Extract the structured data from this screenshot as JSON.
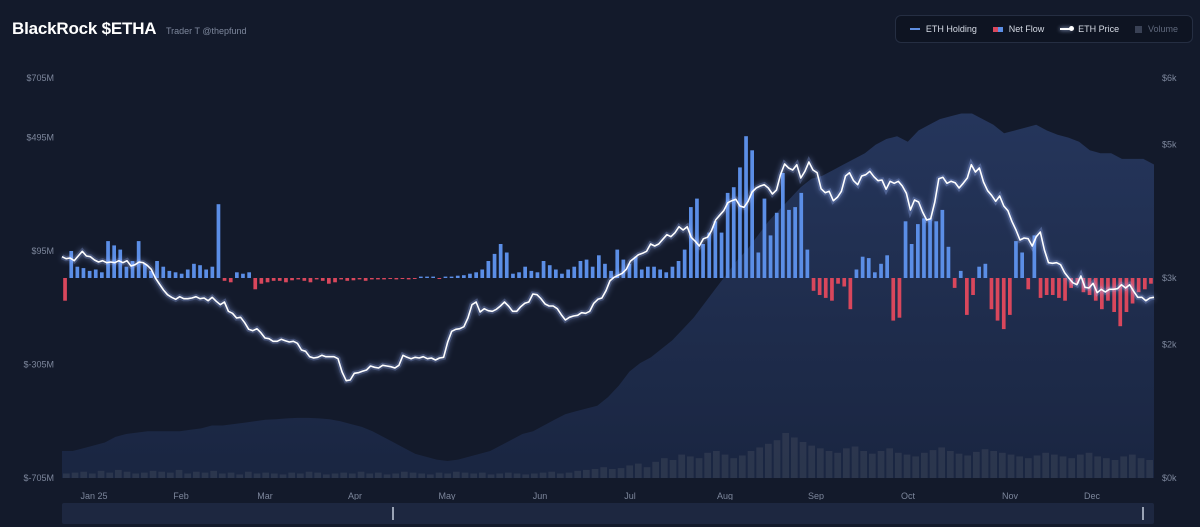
{
  "header": {
    "title": "BlackRock $ETHA",
    "subtitle": "Trader T @thepfund"
  },
  "legend": [
    {
      "label": "ETH Holding",
      "swatch": "line",
      "active": true
    },
    {
      "label": "Net Flow",
      "swatch": "flow",
      "active": true
    },
    {
      "label": "ETH Price",
      "swatch": "price",
      "active": true
    },
    {
      "label": "Volume",
      "swatch": "volume",
      "active": false
    }
  ],
  "colors": {
    "background": "#131a2b",
    "inflow": "#5b8ee6",
    "outflow": "#d9475c",
    "price": "#ffffff",
    "holding_area": "#1f2d4d",
    "volume": "#3b4357"
  },
  "chart_data": {
    "type": "bar",
    "title": "BlackRock $ETHA",
    "x_ticks": [
      "Jan 25",
      "Feb",
      "Mar",
      "Apr",
      "May",
      "Jun",
      "Jul",
      "Aug",
      "Sep",
      "Oct",
      "Nov",
      "Dec"
    ],
    "y_left_ticks": [
      "$705M",
      "$495M",
      "$95M",
      "$-305M",
      "$-705M"
    ],
    "y_right_ticks": [
      "$6k",
      "$5k",
      "$3k",
      "$2k",
      "$0k"
    ],
    "left_axis_range_usd_m": [
      -705,
      705
    ],
    "right_axis_range_usd": [
      0,
      6000
    ],
    "series": [
      {
        "name": "Net Flow",
        "unit": "$M",
        "values": [
          -80,
          95,
          40,
          35,
          25,
          30,
          20,
          130,
          115,
          100,
          40,
          60,
          130,
          50,
          25,
          60,
          40,
          25,
          20,
          15,
          30,
          50,
          45,
          30,
          40,
          260,
          -10,
          -15,
          20,
          15,
          20,
          -40,
          -20,
          -15,
          -10,
          -10,
          -15,
          -8,
          -5,
          -10,
          -15,
          -5,
          -10,
          -20,
          -15,
          -5,
          -10,
          -8,
          -5,
          -10,
          -5,
          -5,
          -5,
          -3,
          -5,
          -3,
          -5,
          -3,
          5,
          5,
          5,
          -3,
          5,
          5,
          8,
          10,
          15,
          20,
          30,
          60,
          85,
          120,
          90,
          15,
          20,
          40,
          25,
          20,
          60,
          45,
          30,
          15,
          30,
          40,
          60,
          65,
          40,
          80,
          50,
          25,
          100,
          65,
          50,
          75,
          30,
          40,
          40,
          30,
          20,
          40,
          60,
          100,
          250,
          280,
          120,
          160,
          200,
          160,
          300,
          320,
          390,
          500,
          450,
          90,
          280,
          150,
          230,
          370,
          240,
          250,
          300,
          100,
          -45,
          -60,
          -70,
          -80,
          -20,
          -30,
          -110,
          30,
          75,
          70,
          20,
          50,
          80,
          -150,
          -140,
          200,
          120,
          190,
          210,
          210,
          200,
          240,
          110,
          -35,
          25,
          -130,
          -60,
          40,
          50,
          -110,
          -150,
          -180,
          -130,
          130,
          90,
          -40,
          150,
          -70,
          -60,
          -60,
          -70,
          -80,
          -35,
          -20,
          -50,
          -60,
          -80,
          -110,
          -80,
          -120,
          -170,
          -120,
          -90,
          -50,
          -40,
          -20
        ]
      },
      {
        "name": "ETH Price",
        "unit": "$",
        "values": [
          3320,
          3290,
          3300,
          3260,
          3330,
          3400,
          3330,
          3320,
          3270,
          3240,
          3260,
          3230,
          3240,
          3230,
          3260,
          3230,
          3260,
          3180,
          3200,
          3240,
          3230,
          3190,
          3130,
          3000,
          2910,
          2820,
          2750,
          2710,
          2680,
          2720,
          2690,
          2690,
          2700,
          2720,
          2690,
          2700,
          2660,
          2710,
          2650,
          2600,
          2640,
          2500,
          2470,
          2400,
          2410,
          2330,
          2230,
          2210,
          2240,
          2180,
          2100,
          2090,
          2050,
          2050,
          2080,
          2060,
          2040,
          2050,
          2020,
          1920,
          1900,
          1820,
          1800,
          1810,
          1840,
          1820,
          1820,
          1820,
          1790,
          1590,
          1460,
          1470,
          1570,
          1580,
          1600,
          1620,
          1680,
          1660,
          1650,
          1690,
          1680,
          1670,
          1650,
          1690,
          1840,
          1810,
          1790,
          1810,
          1800,
          1820,
          1790,
          1800,
          1770,
          1800,
          1810,
          2040,
          2200,
          2230,
          2240,
          2270,
          2400,
          2600,
          2640,
          2490,
          2540,
          2510,
          2500,
          2530,
          2580,
          2640,
          2580,
          2500,
          2500,
          2570,
          2620,
          2640,
          2760,
          2750,
          2690,
          2610,
          2580,
          2580,
          2540,
          2450,
          2370,
          2410,
          2430,
          2440,
          2480,
          2470,
          2500,
          2620,
          2680,
          2700,
          2810,
          2960,
          3010,
          3040,
          3070,
          3130,
          3250,
          3300,
          3350,
          3370,
          3400,
          3510,
          3480,
          3510,
          3580,
          3650,
          3620,
          3680,
          3770,
          3720,
          3770,
          3610,
          3550,
          3480,
          3590,
          3610,
          3710,
          3870,
          3940,
          4010,
          4130,
          4160,
          4180,
          4080,
          4060,
          4150,
          4290,
          4350,
          4380,
          4400,
          4350,
          4260,
          4320,
          4550,
          4710,
          4650,
          4620,
          4700,
          4500,
          4600,
          4740,
          4620,
          4580,
          4340,
          4280,
          4300,
          4160,
          4210,
          4300,
          4530,
          4580,
          4460,
          4400,
          4530,
          4550,
          4600,
          4520,
          4460,
          4470,
          4330,
          4450,
          4420,
          4450,
          4380,
          4270,
          4020,
          4170,
          4140,
          3990,
          3870,
          3890,
          4140,
          4490,
          4510,
          4420,
          4450,
          4430,
          4350,
          4420,
          4500,
          4700,
          4590,
          4650,
          4440,
          4310,
          4240,
          4150,
          4230,
          4080,
          4010,
          3850,
          3720,
          3570,
          3600,
          3590,
          3480,
          3620,
          3690,
          3420,
          3230,
          3220,
          3230,
          3200,
          3080,
          3000,
          2930,
          2900,
          3030,
          2860,
          2850,
          2920,
          2780,
          2830,
          2790,
          2830,
          2830,
          2840,
          2900,
          2850,
          2900,
          2800,
          2710,
          2710,
          2660,
          2700,
          2710
        ]
      },
      {
        "name": "ETH Holding",
        "unit": "$M",
        "values": [
          -610,
          -610,
          -600,
          -590,
          -580,
          -560,
          -550,
          -545,
          -540,
          -540,
          -540,
          -540,
          -535,
          -530,
          -520,
          -520,
          -515,
          -510,
          -505,
          -500,
          -498,
          -495,
          -493,
          -493,
          -495,
          -498,
          -505,
          -515,
          -525,
          -540,
          -560,
          -580,
          -600,
          -620,
          -630,
          -640,
          -645,
          -640,
          -630,
          -620,
          -610,
          -590,
          -570,
          -550,
          -540,
          -520,
          -500,
          -480,
          -470,
          -460,
          -450,
          -420,
          -380,
          -330,
          -300,
          -280,
          -250,
          -220,
          -180,
          -140,
          -90,
          -40,
          10,
          60,
          100,
          150,
          200,
          240,
          280,
          320,
          350,
          360,
          380,
          400,
          420,
          440,
          470,
          490,
          500,
          480,
          520,
          540,
          560,
          570,
          580,
          580,
          560,
          540,
          510,
          520,
          530,
          540,
          520,
          505,
          495,
          480,
          450,
          440,
          440,
          420,
          420,
          420,
          400
        ]
      },
      {
        "name": "Volume",
        "unit": "relative",
        "values": [
          0.05,
          0.06,
          0.07,
          0.05,
          0.08,
          0.06,
          0.09,
          0.07,
          0.05,
          0.06,
          0.08,
          0.07,
          0.06,
          0.09,
          0.05,
          0.07,
          0.06,
          0.08,
          0.05,
          0.06,
          0.04,
          0.07,
          0.05,
          0.06,
          0.05,
          0.04,
          0.06,
          0.05,
          0.07,
          0.06,
          0.04,
          0.05,
          0.06,
          0.05,
          0.07,
          0.05,
          0.06,
          0.04,
          0.05,
          0.07,
          0.06,
          0.05,
          0.04,
          0.06,
          0.05,
          0.07,
          0.06,
          0.05,
          0.06,
          0.04,
          0.05,
          0.06,
          0.05,
          0.04,
          0.05,
          0.06,
          0.07,
          0.05,
          0.06,
          0.08,
          0.09,
          0.1,
          0.12,
          0.1,
          0.11,
          0.14,
          0.16,
          0.12,
          0.18,
          0.22,
          0.2,
          0.26,
          0.24,
          0.22,
          0.28,
          0.3,
          0.26,
          0.22,
          0.25,
          0.3,
          0.34,
          0.38,
          0.42,
          0.5,
          0.45,
          0.4,
          0.36,
          0.33,
          0.3,
          0.28,
          0.33,
          0.35,
          0.3,
          0.27,
          0.3,
          0.33,
          0.28,
          0.26,
          0.24,
          0.28,
          0.31,
          0.34,
          0.3,
          0.27,
          0.25,
          0.29,
          0.32,
          0.3,
          0.28,
          0.26,
          0.24,
          0.22,
          0.25,
          0.28,
          0.26,
          0.24,
          0.22,
          0.26,
          0.28,
          0.24,
          0.22,
          0.2,
          0.24,
          0.26,
          0.22,
          0.2
        ]
      }
    ],
    "grid": false,
    "legend_position": "top-right"
  }
}
